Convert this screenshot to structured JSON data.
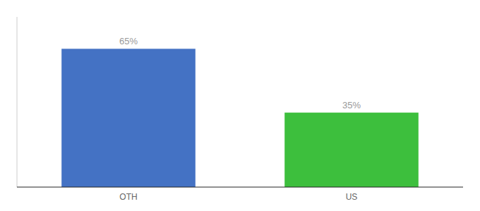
{
  "chart_data": {
    "type": "bar",
    "categories": [
      "OTH",
      "US"
    ],
    "values": [
      65,
      35
    ],
    "value_labels": [
      "65%",
      "35%"
    ],
    "colors": [
      "#4472c4",
      "#3dbf3d"
    ],
    "ylim": [
      0,
      80
    ],
    "data_labels": true,
    "tick_labels": "x",
    "grid": false
  }
}
